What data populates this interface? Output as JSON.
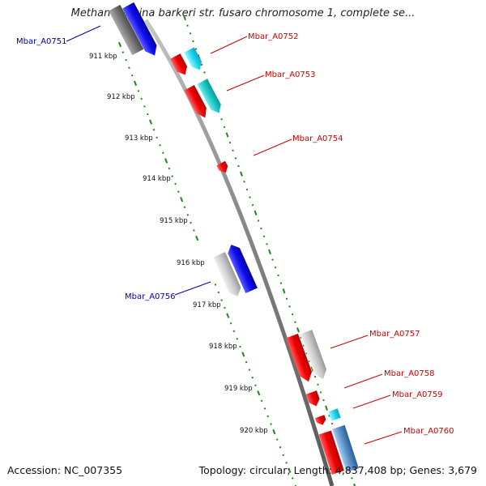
{
  "title": "Methanosarcina barkeri str. fusaro chromosome 1, complete se...",
  "footer": {
    "accession": "Accession: NC_007355",
    "summary": "Topology: circular; Length: 4,837,408 bp; Genes: 3,679"
  },
  "colors": {
    "background": "#ffffff",
    "backbone": "#8a8a8a",
    "tick_dots": "#1a8a1a",
    "label_forward": "#cc0000",
    "label_reverse": "#0000aa"
  },
  "kbp_ticks": [
    "911 kbp",
    "912 kbp",
    "913 kbp",
    "914 kbp",
    "915 kbp",
    "916 kbp",
    "917 kbp",
    "918 kbp",
    "919 kbp",
    "920 kbp"
  ],
  "gene_labels": [
    {
      "id": "g0751",
      "text": "Mbar_A0751",
      "strand": "reverse"
    },
    {
      "id": "g0752",
      "text": "Mbar_A0752",
      "strand": "forward"
    },
    {
      "id": "g0753",
      "text": "Mbar_A0753",
      "strand": "forward"
    },
    {
      "id": "g0754",
      "text": "Mbar_A0754",
      "strand": "forward"
    },
    {
      "id": "g0756",
      "text": "Mbar_A0756",
      "strand": "reverse"
    },
    {
      "id": "g0757",
      "text": "Mbar_A0757",
      "strand": "forward"
    },
    {
      "id": "g0758",
      "text": "Mbar_A0758",
      "strand": "forward"
    },
    {
      "id": "g0759",
      "text": "Mbar_A0759",
      "strand": "forward"
    },
    {
      "id": "g0760",
      "text": "Mbar_A0760",
      "strand": "forward"
    }
  ]
}
